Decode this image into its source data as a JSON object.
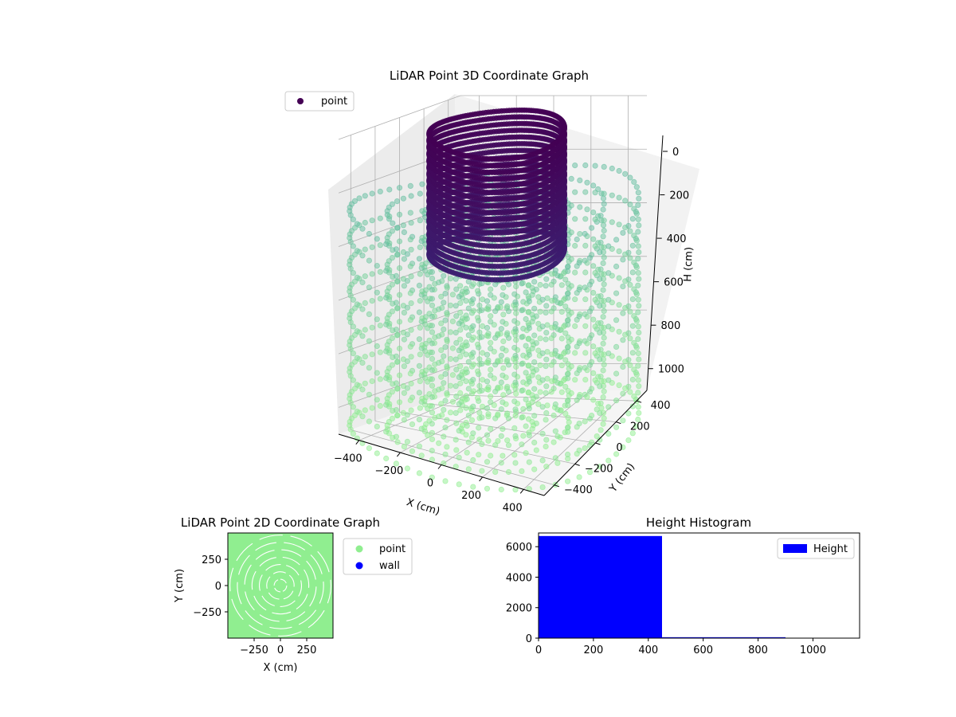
{
  "chart_data": [
    {
      "type": "scatter3d",
      "title": "LiDAR Point 3D Coordinate Graph",
      "xlabel": "X (cm)",
      "ylabel": "Y (cm)",
      "zlabel": "H (cm)",
      "xlim": [
        -500,
        500
      ],
      "ylim": [
        -500,
        500
      ],
      "zlim": [
        1100,
        0
      ],
      "x_ticks": [
        "−400",
        "−200",
        "0",
        "200",
        "400"
      ],
      "y_ticks": [
        "−400",
        "−200",
        "0",
        "200",
        "400"
      ],
      "z_ticks": [
        "0",
        "200",
        "400",
        "600",
        "800",
        "1000"
      ],
      "legend": {
        "label": "point",
        "color": "#440154",
        "position": "upper-left"
      },
      "colormap": "viridis",
      "grid": true,
      "wall": {
        "shape": "cylinder",
        "radius_cm": 300,
        "height_top_cm": 0,
        "height_bottom_cm": 450
      },
      "floor_points": {
        "shape": "concentric-rings",
        "color_range": [
          "#35b779",
          "#90ee90"
        ]
      }
    },
    {
      "type": "scatter",
      "title": "LiDAR Point 2D Coordinate Graph",
      "xlabel": "X (cm)",
      "ylabel": "Y (cm)",
      "xlim": [
        -500,
        500
      ],
      "ylim": [
        -500,
        500
      ],
      "x_ticks": [
        "−250",
        "0",
        "250"
      ],
      "y_ticks": [
        "−250",
        "0",
        "250"
      ],
      "legend_position": "outside-right",
      "series": [
        {
          "name": "point",
          "color": "#90ee90"
        },
        {
          "name": "wall",
          "color": "#0000ff"
        }
      ],
      "ring_radii": [
        60,
        130,
        200,
        270,
        340,
        410,
        480
      ]
    },
    {
      "type": "bar",
      "title": "Height Histogram",
      "xlim": [
        0,
        1170
      ],
      "ylim": [
        0,
        6900
      ],
      "x_ticks": [
        "0",
        "200",
        "400",
        "600",
        "800",
        "1000"
      ],
      "y_ticks": [
        "0",
        "2000",
        "4000",
        "6000"
      ],
      "legend": {
        "label": "Height",
        "color": "#0000ff",
        "position": "upper-right"
      },
      "bins": [
        {
          "start": 0,
          "end": 450,
          "count": 6700
        },
        {
          "start": 450,
          "end": 900,
          "count": 60
        },
        {
          "start": 900,
          "end": 1170,
          "count": 0
        }
      ]
    }
  ]
}
